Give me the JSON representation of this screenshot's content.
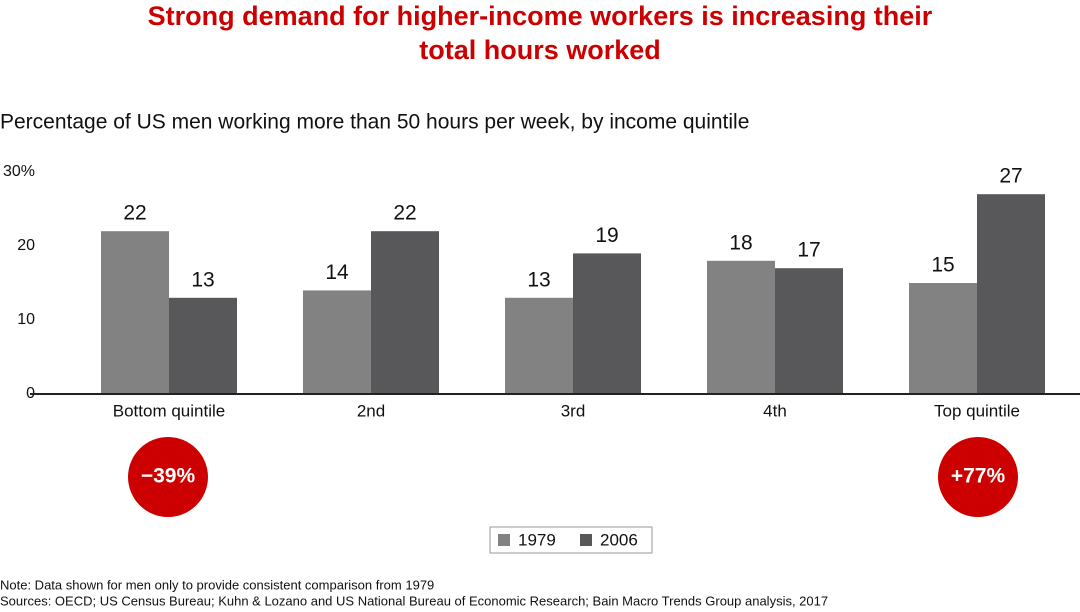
{
  "chart_data": {
    "type": "bar",
    "title": "Strong demand for higher-income workers is increasing their total hours worked",
    "subtitle": "Percentage of US men working more than 50 hours per week, by income quintile",
    "categories": [
      "Bottom quintile",
      "2nd",
      "3rd",
      "4th",
      "Top quintile"
    ],
    "series": [
      {
        "name": "1979",
        "color": "#828282",
        "values": [
          22,
          14,
          13,
          18,
          15
        ]
      },
      {
        "name": "2006",
        "color": "#58585a",
        "values": [
          13,
          22,
          19,
          17,
          27
        ]
      }
    ],
    "ylim": [
      0,
      30
    ],
    "yticks": [
      0,
      10,
      20,
      {
        "value": 30,
        "label": "30%"
      }
    ],
    "annotations": [
      "−39%",
      "+77%"
    ],
    "note": "Note: Data shown for men only to provide consistent comparison from 1979",
    "sources": "Sources: OECD; US Census Bureau; Kuhn & Lozano and US National Bureau of Economic Research; Bain Macro Trends Group analysis, 2017"
  }
}
